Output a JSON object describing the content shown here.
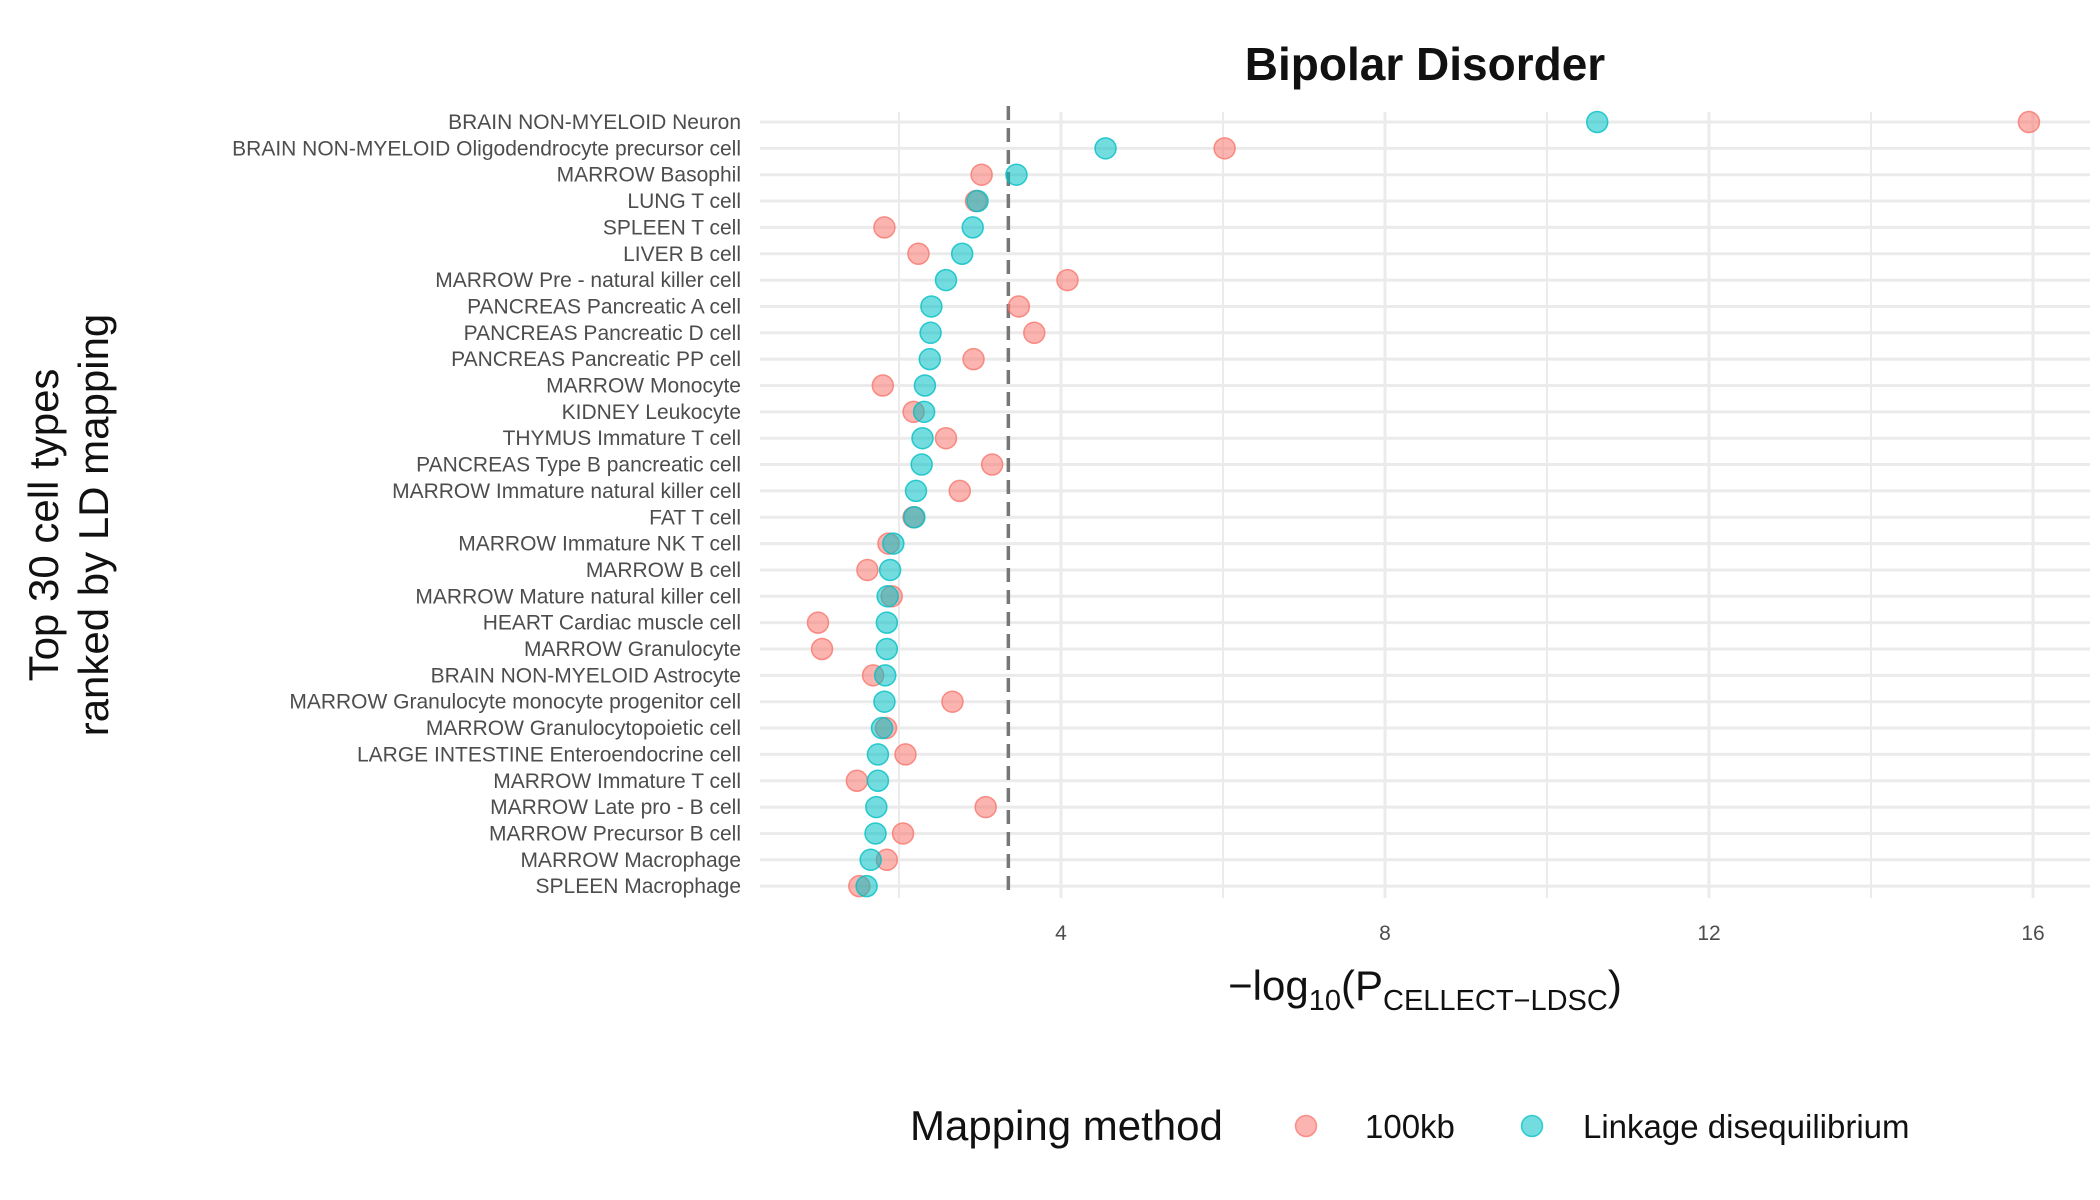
{
  "chart_data": {
    "type": "scatter",
    "title": "Bipolar Disorder",
    "xlabel": "−log10(PCELLECT−LDSC)",
    "xlabel_parts": {
      "prefix": "−log",
      "sub1": "10",
      "open": "(P",
      "sub2": "CELLECT−LDSC",
      "close": ")"
    },
    "ylabel_lines": [
      "Top 30 cell types",
      "ranked by LD mapping"
    ],
    "xlim": [
      0,
      16.7
    ],
    "x_ticks": [
      4,
      8,
      12,
      16
    ],
    "reference_line_x": 3.35,
    "grid": true,
    "legend_position": "bottom",
    "legend_title": "Mapping method",
    "categories": [
      "BRAIN NON-MYELOID Neuron",
      "BRAIN NON-MYELOID Oligodendrocyte precursor cell",
      "MARROW Basophil",
      "LUNG T cell",
      "SPLEEN T cell",
      "LIVER B cell",
      "MARROW Pre - natural killer cell",
      "PANCREAS Pancreatic A cell",
      "PANCREAS Pancreatic D cell",
      "PANCREAS Pancreatic PP cell",
      "MARROW Monocyte",
      "KIDNEY Leukocyte",
      "THYMUS Immature T cell",
      "PANCREAS Type B pancreatic cell",
      "MARROW Immature natural killer cell",
      "FAT T cell",
      "MARROW Immature NK T cell",
      "MARROW B cell",
      "MARROW Mature natural killer cell",
      "HEART Cardiac muscle cell",
      "MARROW Granulocyte",
      "BRAIN NON-MYELOID Astrocyte",
      "MARROW Granulocyte monocyte progenitor cell",
      "MARROW Granulocytopoietic cell",
      "LARGE INTESTINE Enteroendocrine cell",
      "MARROW Immature T cell",
      "MARROW Late pro - B cell",
      "MARROW Precursor B cell",
      "MARROW Macrophage",
      "SPLEEN Macrophage"
    ],
    "series": [
      {
        "name": "100kb",
        "color": "#F8766D",
        "values": [
          15.95,
          6.02,
          3.02,
          2.95,
          1.82,
          2.24,
          4.08,
          3.48,
          3.67,
          2.92,
          1.8,
          2.18,
          2.58,
          3.15,
          2.75,
          2.18,
          1.87,
          1.61,
          1.91,
          1.0,
          1.05,
          1.68,
          2.66,
          1.84,
          2.08,
          1.48,
          3.07,
          2.05,
          1.85,
          1.51
        ]
      },
      {
        "name": "Linkage disequilibrium",
        "color": "#00BFC4",
        "values": [
          10.62,
          4.55,
          3.45,
          2.97,
          2.91,
          2.78,
          2.58,
          2.4,
          2.39,
          2.38,
          2.32,
          2.31,
          2.29,
          2.28,
          2.21,
          2.19,
          1.93,
          1.89,
          1.86,
          1.85,
          1.85,
          1.83,
          1.82,
          1.79,
          1.74,
          1.74,
          1.72,
          1.71,
          1.65,
          1.6
        ]
      }
    ]
  }
}
